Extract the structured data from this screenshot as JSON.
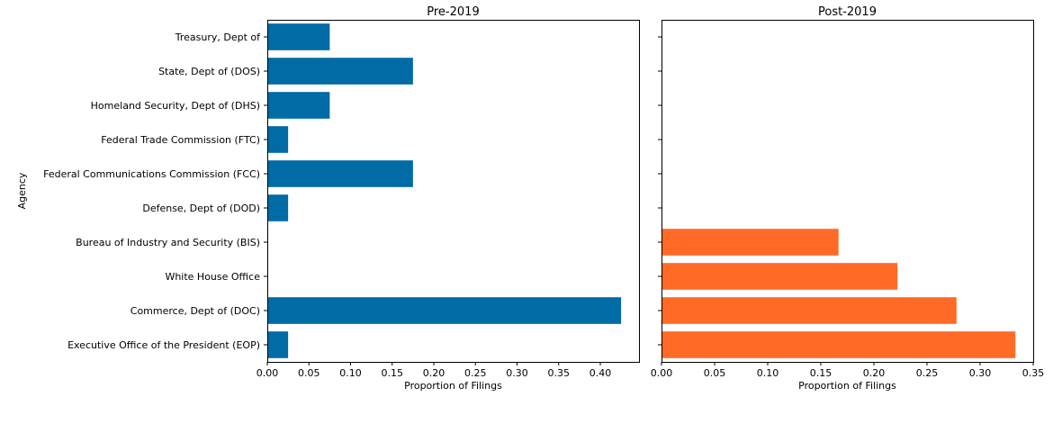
{
  "chart_data": {
    "type": "bar",
    "orientation": "horizontal",
    "categories": [
      "Executive Office of the President (EOP)",
      "Commerce, Dept of (DOC)",
      "White House Office",
      "Bureau of Industry and Security (BIS)",
      "Defense, Dept of (DOD)",
      "Federal Communications Commission (FCC)",
      "Federal Trade Commission (FTC)",
      "Homeland Security, Dept of (DHS)",
      "State, Dept of (DOS)",
      "Treasury, Dept of"
    ],
    "ylabel": "Agency",
    "grid": false,
    "panels": [
      {
        "title": "Pre-2019",
        "xlabel": "Proportion of Filings",
        "color": "#006ba4",
        "values": [
          0.025,
          0.425,
          0,
          0,
          0.025,
          0.175,
          0.025,
          0.075,
          0.175,
          0.075
        ],
        "xlim": [
          0,
          0.4465
        ],
        "xticks": [
          "0.00",
          "0.05",
          "0.10",
          "0.15",
          "0.20",
          "0.25",
          "0.30",
          "0.35",
          "0.40"
        ]
      },
      {
        "title": "Post-2019",
        "xlabel": "Proportion of Filings",
        "color": "#ff6b26",
        "values": [
          0.3333,
          0.2778,
          0.2222,
          0.1667,
          0,
          0,
          0,
          0,
          0,
          0
        ],
        "xlim": [
          0,
          0.35
        ],
        "xticks": [
          "0.00",
          "0.05",
          "0.10",
          "0.15",
          "0.20",
          "0.25",
          "0.30",
          "0.35"
        ]
      }
    ]
  }
}
